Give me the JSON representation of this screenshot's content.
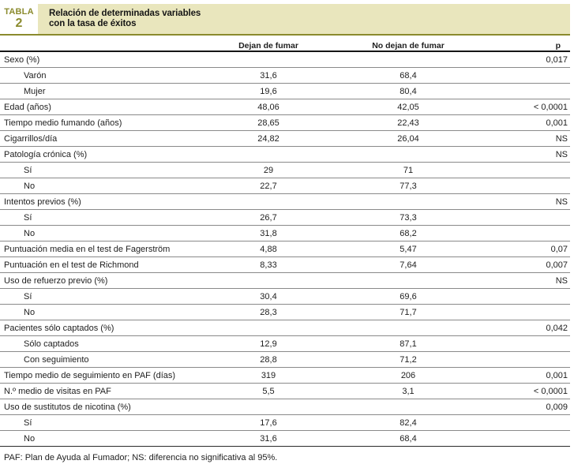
{
  "header": {
    "badge_label": "TABLA",
    "badge_number": "2",
    "title_line1": "Relación de determinadas variables",
    "title_line2": "con la tasa de éxitos",
    "accent_color": "#8b8b2e",
    "band_color": "#e9e6bd"
  },
  "table": {
    "columns": {
      "quit": "Dejan de fumar",
      "no_quit": "No dejan de fumar",
      "p": "p"
    },
    "rows": [
      {
        "label": "Sexo (%)",
        "indent": false,
        "quit": "",
        "no_quit": "",
        "p": "0,017"
      },
      {
        "label": "Varón",
        "indent": true,
        "quit": "31,6",
        "no_quit": "68,4",
        "p": ""
      },
      {
        "label": "Mujer",
        "indent": true,
        "quit": "19,6",
        "no_quit": "80,4",
        "p": ""
      },
      {
        "label": "Edad (años)",
        "indent": false,
        "quit": "48,06",
        "no_quit": "42,05",
        "p": "< 0,0001"
      },
      {
        "label": "Tiempo medio fumando (años)",
        "indent": false,
        "quit": "28,65",
        "no_quit": "22,43",
        "p": "0,001"
      },
      {
        "label": "Cigarrillos/día",
        "indent": false,
        "quit": "24,82",
        "no_quit": "26,04",
        "p": "NS"
      },
      {
        "label": "Patología crónica (%)",
        "indent": false,
        "quit": "",
        "no_quit": "",
        "p": "NS"
      },
      {
        "label": "Sí",
        "indent": true,
        "quit": "29",
        "no_quit": "71",
        "p": ""
      },
      {
        "label": "No",
        "indent": true,
        "quit": "22,7",
        "no_quit": "77,3",
        "p": ""
      },
      {
        "label": "Intentos previos (%)",
        "indent": false,
        "quit": "",
        "no_quit": "",
        "p": "NS"
      },
      {
        "label": "Sí",
        "indent": true,
        "quit": "26,7",
        "no_quit": "73,3",
        "p": ""
      },
      {
        "label": "No",
        "indent": true,
        "quit": "31,8",
        "no_quit": "68,2",
        "p": ""
      },
      {
        "label": "Puntuación media en el test de Fagerström",
        "indent": false,
        "quit": "4,88",
        "no_quit": "5,47",
        "p": "0,07"
      },
      {
        "label": "Puntuación en el test de Richmond",
        "indent": false,
        "quit": "8,33",
        "no_quit": "7,64",
        "p": "0,007"
      },
      {
        "label": "Uso de refuerzo previo (%)",
        "indent": false,
        "quit": "",
        "no_quit": "",
        "p": "NS"
      },
      {
        "label": "Sí",
        "indent": true,
        "quit": "30,4",
        "no_quit": "69,6",
        "p": ""
      },
      {
        "label": "No",
        "indent": true,
        "quit": "28,3",
        "no_quit": "71,7",
        "p": ""
      },
      {
        "label": "Pacientes sólo captados (%)",
        "indent": false,
        "quit": "",
        "no_quit": "",
        "p": "0,042"
      },
      {
        "label": "Sólo captados",
        "indent": true,
        "quit": "12,9",
        "no_quit": "87,1",
        "p": ""
      },
      {
        "label": "Con seguimiento",
        "indent": true,
        "quit": "28,8",
        "no_quit": "71,2",
        "p": ""
      },
      {
        "label": "Tiempo medio de seguimiento en PAF (días)",
        "indent": false,
        "quit": "319",
        "no_quit": "206",
        "p": "0,001"
      },
      {
        "label": "N.º medio de visitas en PAF",
        "indent": false,
        "quit": "5,5",
        "no_quit": "3,1",
        "p": "< 0,0001"
      },
      {
        "label": "Uso de sustitutos de nicotina (%)",
        "indent": false,
        "quit": "",
        "no_quit": "",
        "p": "0,009"
      },
      {
        "label": "Sí",
        "indent": true,
        "quit": "17,6",
        "no_quit": "82,4",
        "p": ""
      },
      {
        "label": "No",
        "indent": true,
        "quit": "31,6",
        "no_quit": "68,4",
        "p": ""
      }
    ]
  },
  "footnote": "PAF: Plan de Ayuda al Fumador; NS: diferencia no significativa al 95%."
}
